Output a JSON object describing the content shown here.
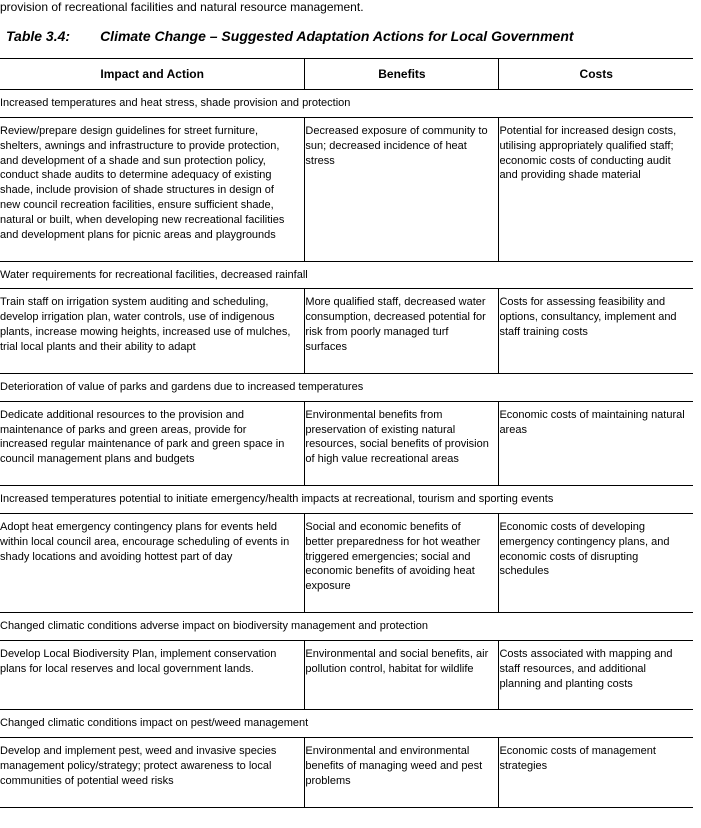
{
  "lead_fragment": "provision of recreational facilities and natural resource management.",
  "title_prefix": "Table 3.4:",
  "title_main": "Climate Change – Suggested Adaptation Actions for Local Government",
  "headers": {
    "c1": "Impact and Action",
    "c2": "Benefits",
    "c3": "Costs"
  },
  "sections": [
    {
      "heading": "Increased temperatures and heat stress, shade provision and protection",
      "rows": [
        {
          "action": "Review/prepare design guidelines for street furniture, shelters, awnings and infrastructure to provide protection, and development of a shade and sun protection policy, conduct shade audits to determine adequacy of existing shade, include provision of shade structures in design of new council recreation facilities, ensure sufficient shade, natural or built, when developing new recreational facilities and development plans for picnic areas and playgrounds",
          "benefits": "Decreased exposure of community to sun; decreased incidence of heat stress",
          "costs": "Potential for increased design costs, utilising appropriately qualified staff; economic costs of conducting audit and providing shade material"
        }
      ]
    },
    {
      "heading": "Water requirements for recreational facilities, decreased rainfall",
      "rows": [
        {
          "action": "Train staff on irrigation system auditing and scheduling, develop irrigation plan, water controls, use of indigenous plants, increase mowing heights, increased use of mulches, trial local plants and their ability to adapt",
          "benefits": "More qualified staff, decreased water consumption, decreased potential for risk from poorly managed turf surfaces",
          "costs": "Costs for assessing feasibility and options, consultancy, implement and staff training costs"
        }
      ]
    },
    {
      "heading": "Deterioration of value of parks and gardens due to increased temperatures",
      "rows": [
        {
          "action": "Dedicate additional resources to the provision and maintenance of parks and green areas, provide for increased regular maintenance of park and green space in council management plans and budgets",
          "benefits": "Environmental benefits from preservation of existing natural resources, social benefits of provision of high value recreational areas",
          "costs": "Economic costs of maintaining natural areas"
        }
      ]
    },
    {
      "heading": "Increased temperatures potential to initiate emergency/health impacts at recreational, tourism and sporting events",
      "rows": [
        {
          "action": "Adopt heat emergency contingency plans for events held within local council area, encourage scheduling of events in shady locations and avoiding hottest part of day",
          "benefits": "Social and economic benefits of better preparedness for hot weather triggered emergencies; social and economic benefits of avoiding heat exposure",
          "costs": "Economic costs of developing emergency contingency plans, and economic costs of disrupting schedules"
        }
      ]
    },
    {
      "heading": "Changed climatic conditions adverse impact on biodiversity management and protection",
      "rows": [
        {
          "action": "Develop Local Biodiversity Plan, implement conservation plans for local reserves and local government lands.",
          "benefits": "Environmental and social benefits, air pollution control, habitat for wildlife",
          "costs": "Costs associated with mapping and staff resources, and additional planning and planting costs"
        }
      ]
    },
    {
      "heading": "Changed climatic conditions impact on pest/weed management",
      "rows": [
        {
          "action": "Develop and implement pest, weed and invasive species management policy/strategy; protect awareness to local communities of potential weed risks",
          "benefits": "Environmental and environmental benefits of managing weed and pest problems",
          "costs": "Economic costs of management strategies"
        }
      ]
    }
  ]
}
